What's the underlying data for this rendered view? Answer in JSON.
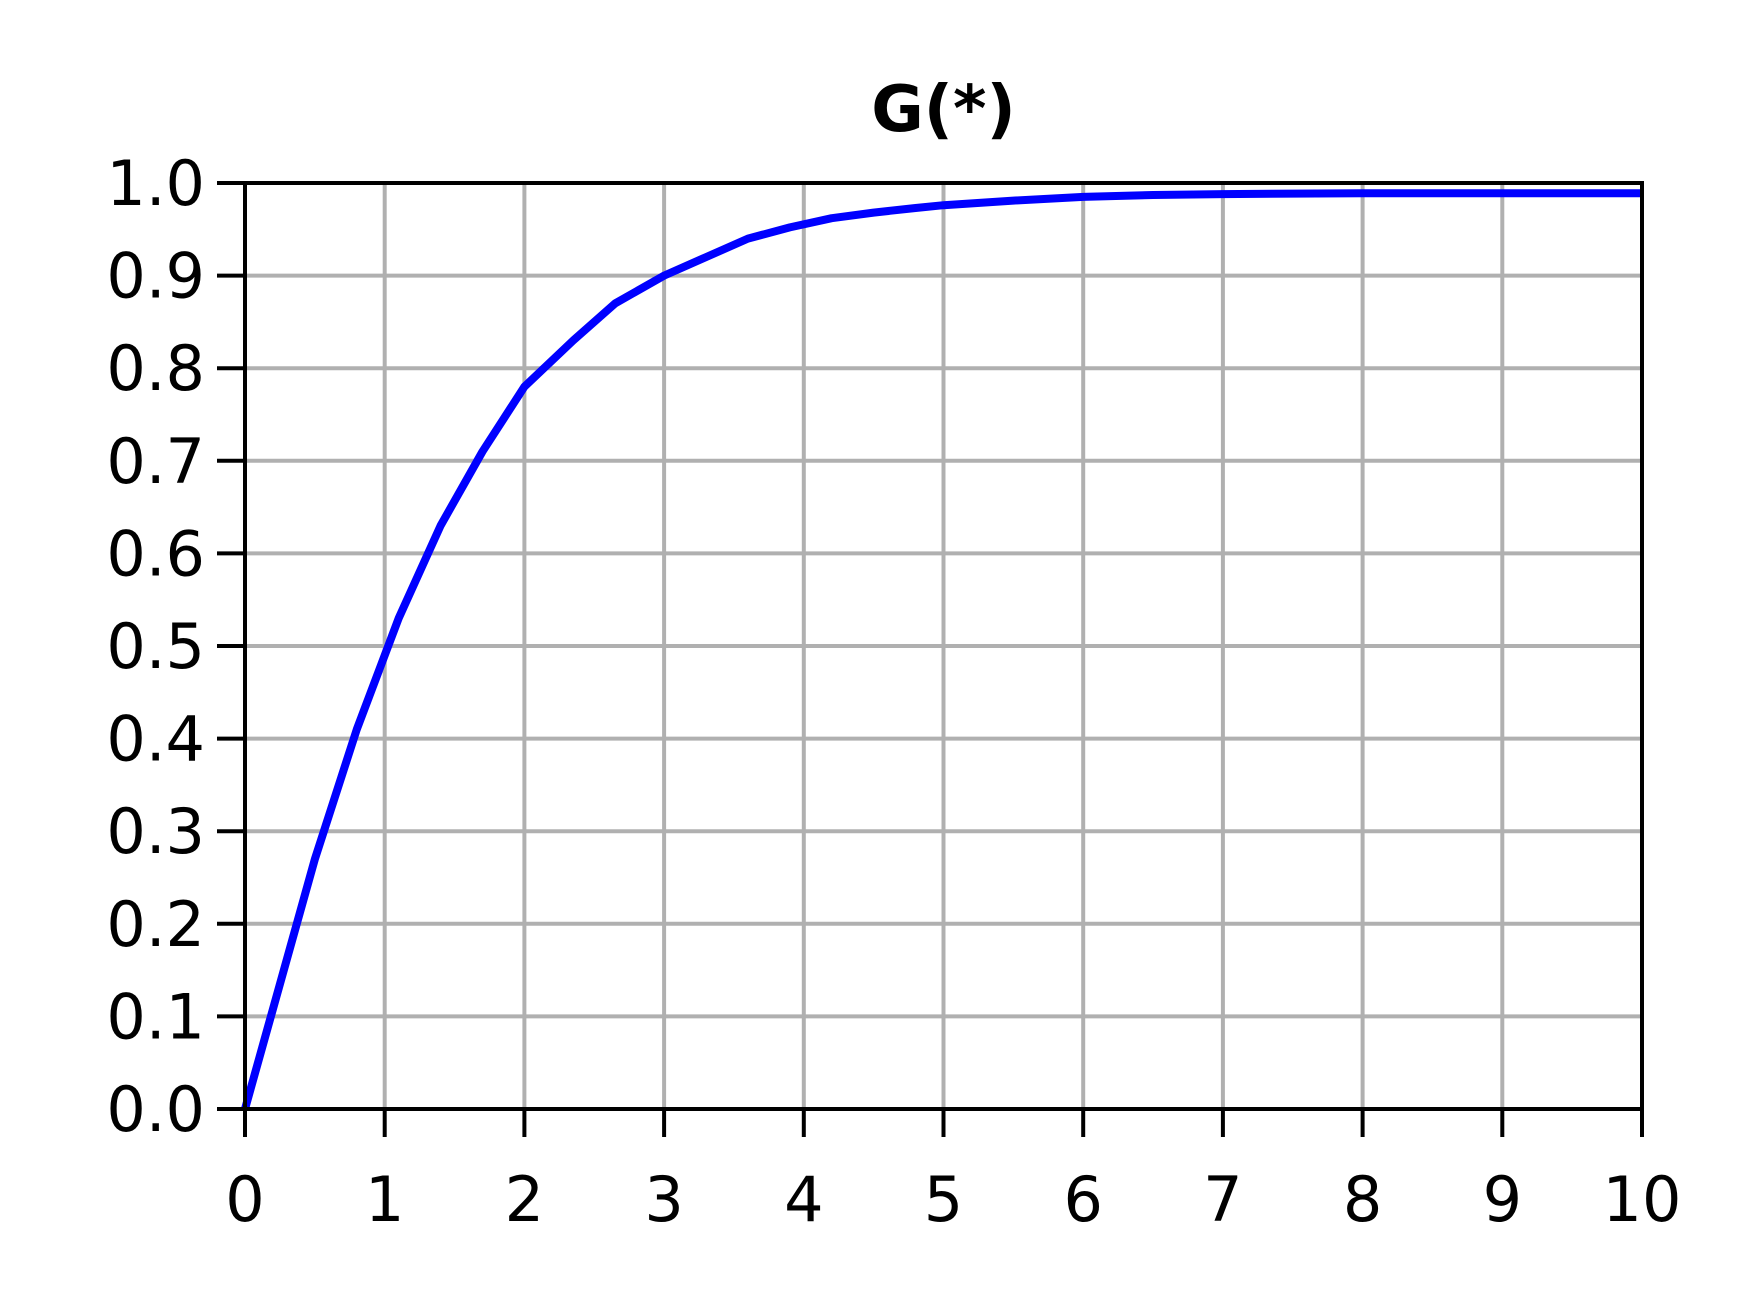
{
  "chart_data": {
    "type": "line",
    "title": "G(*)",
    "xlabel": "",
    "ylabel": "",
    "xlim": [
      0,
      10
    ],
    "ylim": [
      0,
      1.0
    ],
    "grid": true,
    "x_ticks": [
      "0",
      "1",
      "2",
      "3",
      "4",
      "5",
      "6",
      "7",
      "8",
      "9",
      "10"
    ],
    "y_ticks": [
      "0.0",
      "0.1",
      "0.2",
      "0.3",
      "0.4",
      "0.5",
      "0.6",
      "0.7",
      "0.8",
      "0.9",
      "1.0"
    ],
    "x_tick_values": [
      0,
      1,
      2,
      3,
      4,
      5,
      6,
      7,
      8,
      9,
      10
    ],
    "y_tick_values": [
      0,
      0.1,
      0.2,
      0.3,
      0.4,
      0.5,
      0.6,
      0.7,
      0.8,
      0.9,
      1.0
    ],
    "series": [
      {
        "color": "#0000ff",
        "x": [
          0,
          0.5,
          0.8,
          1.1,
          1.4,
          1.7,
          2.0,
          2.35,
          2.65,
          3.0,
          3.3,
          3.6,
          3.9,
          4.2,
          4.5,
          4.8,
          5.0,
          5.5,
          6.0,
          6.5,
          7.0,
          8.0,
          9.0,
          10.0
        ],
        "y": [
          0,
          0.27,
          0.41,
          0.53,
          0.63,
          0.71,
          0.78,
          0.83,
          0.87,
          0.9,
          0.92,
          0.94,
          0.952,
          0.962,
          0.968,
          0.973,
          0.976,
          0.981,
          0.985,
          0.987,
          0.988,
          0.989,
          0.989,
          0.989
        ]
      }
    ],
    "colors": {
      "line": "#0000ff",
      "grid": "#b0b0b0",
      "axis": "#000000"
    }
  }
}
